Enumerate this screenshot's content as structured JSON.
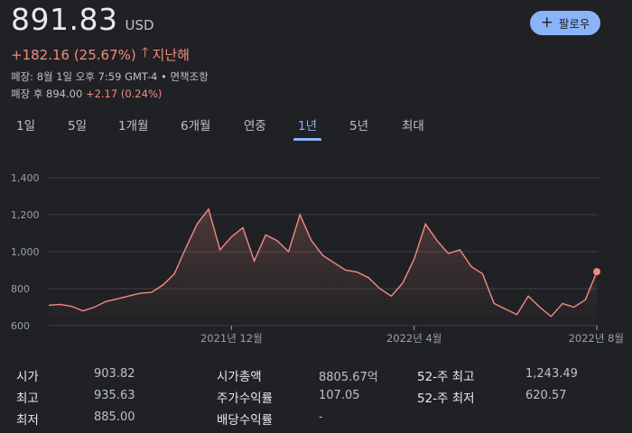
{
  "quote": {
    "price": "891.83",
    "currency": "USD",
    "change": "+182.16 (25.67%)",
    "period": "지난해",
    "close_info": "폐장: 8월 1일 오후 7:59 GMT-4 • 면책조항",
    "after_hours_prefix": "폐장 후 894.00",
    "after_hours_change": "+2.17 (0.24%)"
  },
  "follow": {
    "label": "팔로우"
  },
  "tabs": [
    "1일",
    "5일",
    "1개월",
    "6개월",
    "연중",
    "1년",
    "5년",
    "최대"
  ],
  "active_tab": "1년",
  "colors": {
    "accent": "#8ab4f8",
    "negative_positive_line": "#f28b82",
    "background": "#202124"
  },
  "chart_data": {
    "type": "line",
    "ylim": [
      600,
      1400
    ],
    "yticks": [
      600,
      800,
      1000,
      1200,
      1400
    ],
    "ytick_labels": [
      "600",
      "800",
      "1,000",
      "1,200",
      "1,400"
    ],
    "xtick_labels": [
      "2021년 12월",
      "2022년 4월",
      "2022년 8월"
    ],
    "grid": true,
    "x": [
      "2021-08",
      "2021-08",
      "2021-08",
      "2021-09",
      "2021-09",
      "2021-09",
      "2021-09",
      "2021-10",
      "2021-10",
      "2021-10",
      "2021-10",
      "2021-11",
      "2021-11",
      "2021-11",
      "2021-11",
      "2021-11",
      "2021-12",
      "2021-12",
      "2021-12",
      "2021-12",
      "2022-01",
      "2022-01",
      "2022-01",
      "2022-01",
      "2022-02",
      "2022-02",
      "2022-02",
      "2022-02",
      "2022-03",
      "2022-03",
      "2022-03",
      "2022-03",
      "2022-04",
      "2022-04",
      "2022-04",
      "2022-04",
      "2022-05",
      "2022-05",
      "2022-05",
      "2022-05",
      "2022-06",
      "2022-06",
      "2022-06",
      "2022-06",
      "2022-07",
      "2022-07",
      "2022-07",
      "2022-07",
      "2022-08"
    ],
    "values": [
      710,
      715,
      705,
      680,
      700,
      730,
      745,
      760,
      775,
      780,
      820,
      880,
      1020,
      1150,
      1230,
      1010,
      1080,
      1130,
      950,
      1090,
      1060,
      1000,
      1200,
      1060,
      980,
      940,
      900,
      890,
      860,
      800,
      760,
      830,
      960,
      1150,
      1060,
      990,
      1010,
      920,
      880,
      720,
      690,
      660,
      760,
      700,
      650,
      720,
      700,
      740,
      891.83
    ]
  },
  "stats": {
    "open_label": "시가",
    "open_value": "903.82",
    "high_label": "최고",
    "high_value": "935.63",
    "low_label": "최저",
    "low_value": "885.00",
    "mktcap_label": "시가총액",
    "mktcap_value": "8805.67억",
    "pe_label": "주가수익률",
    "pe_value": "107.05",
    "div_label": "배당수익률",
    "div_value": "-",
    "high52_label": "52-주 최고",
    "high52_value": "1,243.49",
    "low52_label": "52-주 최저",
    "low52_value": "620.57"
  }
}
